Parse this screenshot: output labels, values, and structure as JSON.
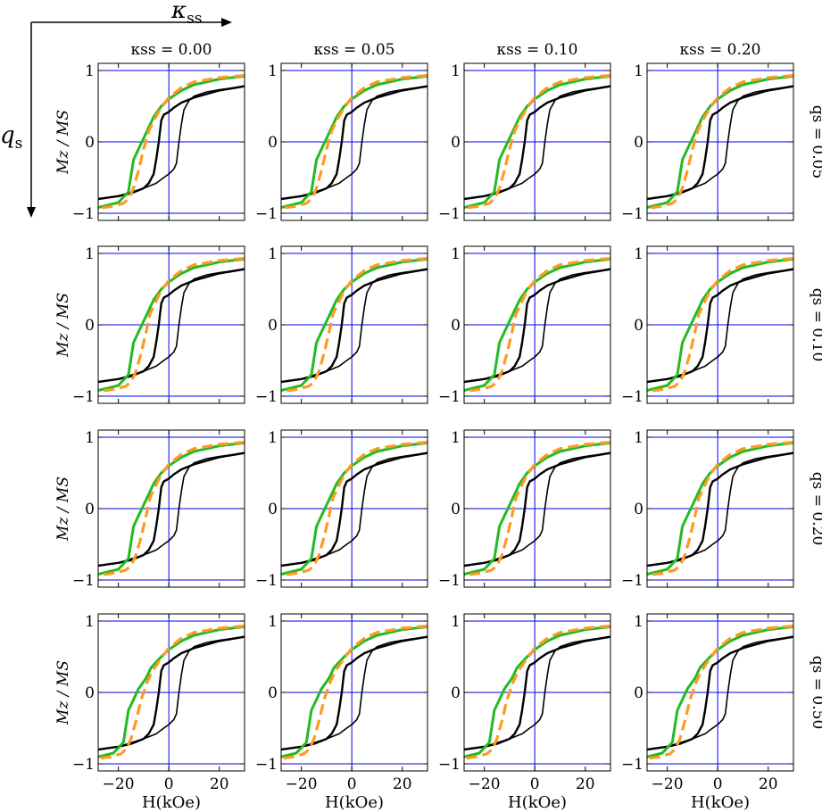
{
  "figure": {
    "corner_axes": {
      "horizontal_label": {
        "symbol": "κ",
        "subscript": "ss"
      },
      "vertical_label": {
        "symbol": "q",
        "subscript": "s"
      }
    },
    "column_headers": [
      "κss = 0.00",
      "κss = 0.05",
      "κss = 0.10",
      "κss = 0.20"
    ],
    "row_labels": [
      "qs = 0.05",
      "qs = 0.10",
      "qs = 0.20",
      "qs = 0.50"
    ],
    "ylabel": "Mz / MS",
    "xlabel": "H(kOe)",
    "colors": {
      "axis_frame": "#000000",
      "reference_lines": "#0000ee",
      "black_loop": "#000000",
      "green_curve": "#22bb22",
      "orange_curve": "#ff9922"
    }
  },
  "chart_data": {
    "type": "line",
    "layout": "4x4 grid of subplots",
    "xlim": [
      -28,
      30
    ],
    "ylim": [
      -1.1,
      1.1
    ],
    "xticks": [
      -20,
      0,
      20
    ],
    "yticks": [
      -1,
      0,
      1
    ],
    "reference_lines": {
      "horizontal": [
        -1,
        0,
        1
      ],
      "vertical": [
        0
      ]
    },
    "columns": [
      {
        "kappa_ss": 0.0
      },
      {
        "kappa_ss": 0.05
      },
      {
        "kappa_ss": 0.1
      },
      {
        "kappa_ss": 0.2
      }
    ],
    "rows": [
      {
        "q_s": 0.05,
        "green_switch_field": -16,
        "orange_switch_field": -15
      },
      {
        "q_s": 0.1,
        "green_switch_field": -16,
        "orange_switch_field": -14
      },
      {
        "q_s": 0.2,
        "green_switch_field": -16,
        "orange_switch_field": -14
      },
      {
        "q_s": 0.5,
        "green_switch_field": -18,
        "orange_switch_field": -16
      }
    ],
    "black_loop": {
      "decreasing_branch": {
        "x": [
          30,
          20,
          10,
          5,
          2,
          0,
          -2,
          -3,
          -4,
          -5,
          -6,
          -8,
          -10,
          -15,
          -20,
          -28
        ],
        "y": [
          0.78,
          0.72,
          0.62,
          0.55,
          0.48,
          0.42,
          0.38,
          0.3,
          0.0,
          -0.25,
          -0.45,
          -0.58,
          -0.65,
          -0.72,
          -0.76,
          -0.8
        ]
      },
      "increasing_branch": {
        "x": [
          -28,
          -20,
          -10,
          -5,
          -2,
          0,
          2,
          3,
          4,
          5,
          6,
          8,
          10,
          15,
          20,
          30
        ],
        "y": [
          -0.8,
          -0.76,
          -0.65,
          -0.58,
          -0.5,
          -0.45,
          -0.38,
          -0.3,
          0.0,
          0.25,
          0.45,
          0.58,
          0.64,
          0.7,
          0.73,
          0.78
        ]
      }
    },
    "green_curve": {
      "x": [
        30,
        20,
        10,
        5,
        0,
        -3,
        -6,
        -8,
        -10,
        -12,
        -14,
        -16,
        -20,
        -28
      ],
      "y": [
        0.92,
        0.88,
        0.8,
        0.72,
        0.6,
        0.5,
        0.35,
        0.2,
        0.05,
        -0.1,
        -0.25,
        -0.7,
        -0.85,
        -0.92
      ]
    },
    "orange_curve": {
      "x": [
        30,
        20,
        10,
        5,
        0,
        -3,
        -6,
        -8,
        -10,
        -12,
        -14,
        -16,
        -18,
        -22,
        -28
      ],
      "y": [
        0.93,
        0.9,
        0.84,
        0.76,
        0.62,
        0.48,
        0.3,
        0.15,
        -0.1,
        -0.4,
        -0.65,
        -0.8,
        -0.86,
        -0.9,
        -0.93
      ]
    }
  }
}
